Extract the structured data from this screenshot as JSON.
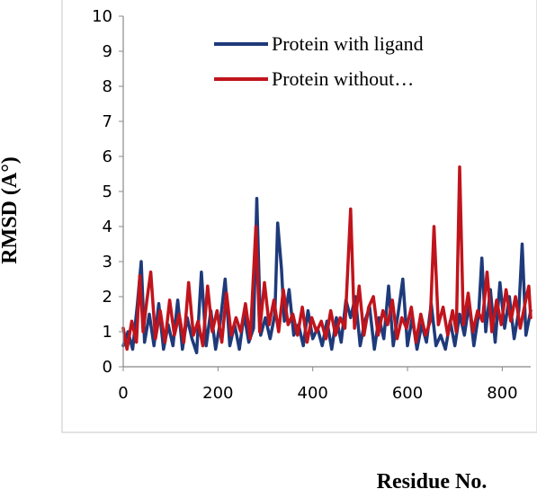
{
  "chart_data": {
    "type": "line",
    "title": "",
    "xlabel": "Residue No.",
    "ylabel": "RMSD (A°)",
    "xlim": [
      0,
      860
    ],
    "ylim": [
      0,
      10
    ],
    "xticks": [
      0,
      200,
      400,
      600,
      800
    ],
    "yticks": [
      0,
      1,
      2,
      3,
      4,
      5,
      6,
      7,
      8,
      9,
      10
    ],
    "grid": false,
    "legend": "top-right inside plot",
    "series": [
      {
        "name": "Protein with ligand",
        "color": "#1f3a7a",
        "x": [
          0,
          10,
          20,
          30,
          38,
          45,
          55,
          65,
          75,
          85,
          95,
          105,
          115,
          125,
          135,
          145,
          155,
          165,
          175,
          185,
          195,
          205,
          215,
          225,
          235,
          245,
          255,
          265,
          275,
          282,
          290,
          300,
          310,
          320,
          326,
          334,
          340,
          350,
          360,
          370,
          380,
          390,
          400,
          410,
          420,
          430,
          440,
          450,
          460,
          470,
          480,
          490,
          500,
          510,
          520,
          530,
          540,
          550,
          560,
          570,
          580,
          590,
          600,
          610,
          620,
          630,
          640,
          650,
          660,
          670,
          680,
          690,
          700,
          710,
          720,
          730,
          740,
          750,
          757,
          765,
          775,
          785,
          795,
          805,
          815,
          825,
          835,
          842,
          850,
          860
        ],
        "y": [
          0.6,
          1.0,
          0.5,
          1.8,
          3.0,
          0.7,
          1.5,
          0.6,
          1.8,
          0.5,
          1.2,
          0.6,
          1.9,
          0.5,
          1.4,
          0.8,
          0.4,
          2.7,
          0.6,
          1.6,
          0.5,
          1.3,
          2.5,
          0.6,
          1.2,
          0.5,
          1.5,
          0.7,
          1.1,
          4.8,
          0.9,
          1.4,
          0.8,
          1.5,
          4.1,
          2.8,
          1.3,
          2.2,
          0.9,
          1.2,
          0.6,
          1.6,
          0.8,
          1.1,
          0.6,
          1.3,
          0.5,
          1.4,
          0.7,
          1.9,
          1.4,
          2.0,
          0.6,
          1.3,
          1.7,
          0.5,
          1.4,
          0.8,
          2.3,
          0.6,
          1.5,
          2.5,
          0.6,
          1.4,
          0.5,
          1.2,
          0.7,
          1.8,
          0.6,
          0.9,
          0.5,
          1.3,
          0.6,
          1.5,
          0.9,
          1.8,
          0.6,
          1.5,
          3.1,
          1.0,
          2.2,
          0.7,
          2.4,
          1.1,
          2.0,
          0.8,
          1.6,
          3.5,
          0.9,
          1.6
        ]
      },
      {
        "name": "Protein without…",
        "color": "#c0141c",
        "x": [
          0,
          8,
          18,
          28,
          35,
          42,
          50,
          58,
          68,
          78,
          88,
          98,
          108,
          118,
          128,
          138,
          148,
          158,
          168,
          178,
          188,
          198,
          208,
          218,
          228,
          238,
          248,
          258,
          268,
          280,
          288,
          298,
          308,
          318,
          328,
          338,
          348,
          358,
          368,
          378,
          388,
          398,
          408,
          418,
          428,
          438,
          448,
          458,
          468,
          480,
          488,
          498,
          508,
          518,
          528,
          538,
          548,
          558,
          568,
          578,
          588,
          598,
          608,
          618,
          628,
          638,
          648,
          656,
          665,
          675,
          685,
          695,
          703,
          710,
          718,
          728,
          738,
          748,
          758,
          768,
          778,
          788,
          798,
          808,
          818,
          828,
          838,
          848,
          856,
          860
        ],
        "y": [
          1.1,
          0.5,
          1.3,
          0.7,
          2.6,
          1.0,
          1.9,
          2.7,
          0.8,
          1.6,
          0.7,
          1.9,
          0.9,
          1.5,
          0.7,
          2.4,
          0.9,
          1.3,
          0.6,
          2.3,
          1.0,
          1.6,
          0.7,
          2.1,
          0.9,
          1.4,
          1.0,
          1.8,
          0.8,
          4.0,
          1.0,
          2.4,
          1.2,
          1.9,
          1.0,
          2.2,
          1.2,
          1.5,
          0.9,
          1.7,
          0.7,
          1.4,
          1.0,
          1.3,
          0.8,
          1.6,
          0.9,
          1.4,
          1.1,
          4.5,
          1.1,
          2.3,
          0.9,
          1.7,
          2.0,
          0.9,
          1.6,
          1.2,
          1.9,
          0.8,
          1.4,
          1.1,
          1.7,
          0.7,
          1.5,
          0.9,
          1.3,
          4.0,
          1.2,
          1.7,
          0.9,
          1.6,
          1.0,
          5.7,
          1.2,
          2.1,
          1.0,
          1.6,
          1.3,
          2.7,
          1.0,
          1.9,
          1.2,
          2.2,
          1.3,
          2.0,
          1.1,
          1.8,
          2.3,
          1.4
        ]
      }
    ]
  }
}
